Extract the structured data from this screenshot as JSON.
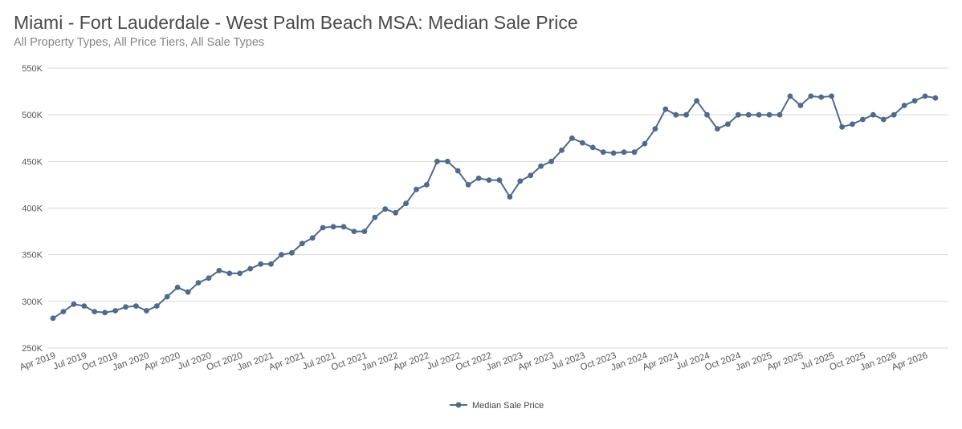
{
  "chart_data": {
    "type": "line",
    "title": "Miami - Fort Lauderdale - West Palm Beach MSA: Median Sale Price",
    "subtitle": "All Property Types, All Price Tiers, All Sale Types",
    "xlabel": "",
    "ylabel": "",
    "ylim": [
      250000,
      550000
    ],
    "y_ticks": [
      250000,
      300000,
      350000,
      400000,
      450000,
      500000,
      550000
    ],
    "y_tick_labels": [
      "250K",
      "300K",
      "350K",
      "400K",
      "450K",
      "500K",
      "550K"
    ],
    "x_tick_labels": [
      "Apr 2019",
      "Jul 2019",
      "Oct 2019",
      "Jan 2020",
      "Apr 2020",
      "Jul 2020",
      "Oct 2020",
      "Jan 2021",
      "Apr 2021",
      "Jul 2021",
      "Oct 2021",
      "Jan 2022",
      "Apr 2022",
      "Jul 2022",
      "Oct 2022",
      "Jan 2023",
      "Apr 2023",
      "Jul 2023",
      "Oct 2023",
      "Jan 2024",
      "Apr 2024",
      "Jul 2024",
      "Oct 2024",
      "Jan 2025",
      "Apr 2025",
      "Jul 2025",
      "Oct 2025",
      "Jan 2026",
      "Apr 2026"
    ],
    "grid": true,
    "legend_position": "bottom",
    "color": "#51698a",
    "series": [
      {
        "name": "Median Sale Price",
        "x": [
          "2019-04",
          "2019-05",
          "2019-06",
          "2019-07",
          "2019-08",
          "2019-09",
          "2019-10",
          "2019-11",
          "2019-12",
          "2020-01",
          "2020-02",
          "2020-03",
          "2020-04",
          "2020-05",
          "2020-06",
          "2020-07",
          "2020-08",
          "2020-09",
          "2020-10",
          "2020-11",
          "2020-12",
          "2021-01",
          "2021-02",
          "2021-03",
          "2021-04",
          "2021-05",
          "2021-06",
          "2021-07",
          "2021-08",
          "2021-09",
          "2021-10",
          "2021-11",
          "2021-12",
          "2022-01",
          "2022-02",
          "2022-03",
          "2022-04",
          "2022-05",
          "2022-06",
          "2022-07",
          "2022-08",
          "2022-09",
          "2022-10",
          "2022-11",
          "2022-12",
          "2023-01",
          "2023-02",
          "2023-03",
          "2023-04",
          "2023-05",
          "2023-06",
          "2023-07",
          "2023-08",
          "2023-09",
          "2023-10",
          "2023-11",
          "2023-12",
          "2024-01",
          "2024-02",
          "2024-03",
          "2024-04",
          "2024-05",
          "2024-06",
          "2024-07",
          "2024-08",
          "2024-09",
          "2024-10",
          "2024-11",
          "2024-12",
          "2025-01",
          "2025-02",
          "2025-03",
          "2025-04",
          "2025-05",
          "2025-06",
          "2025-07",
          "2025-08",
          "2025-09",
          "2025-10",
          "2025-11",
          "2025-12",
          "2026-01",
          "2026-02",
          "2026-03",
          "2026-04",
          "2026-05"
        ],
        "values": [
          282000,
          289000,
          297000,
          295000,
          289000,
          288000,
          290000,
          294000,
          295000,
          290000,
          295000,
          305000,
          315000,
          310000,
          320000,
          325000,
          333000,
          330000,
          330000,
          335000,
          340000,
          340000,
          350000,
          352000,
          362000,
          368000,
          379000,
          380000,
          380000,
          375000,
          375000,
          390000,
          399000,
          395000,
          405000,
          420000,
          425000,
          450000,
          450000,
          440000,
          425000,
          432000,
          430000,
          430000,
          412000,
          429000,
          435000,
          445000,
          450000,
          462000,
          475000,
          470000,
          465000,
          460000,
          459000,
          460000,
          460000,
          469000,
          485000,
          506000,
          500000,
          500000,
          515000,
          500000,
          485000,
          490000,
          500000,
          500000,
          500000,
          500000,
          500000,
          520000,
          510000,
          520000,
          519000,
          520000,
          487000,
          490000,
          495000,
          500000,
          495000,
          500000,
          510000,
          515000,
          520000,
          518000
        ]
      }
    ]
  }
}
